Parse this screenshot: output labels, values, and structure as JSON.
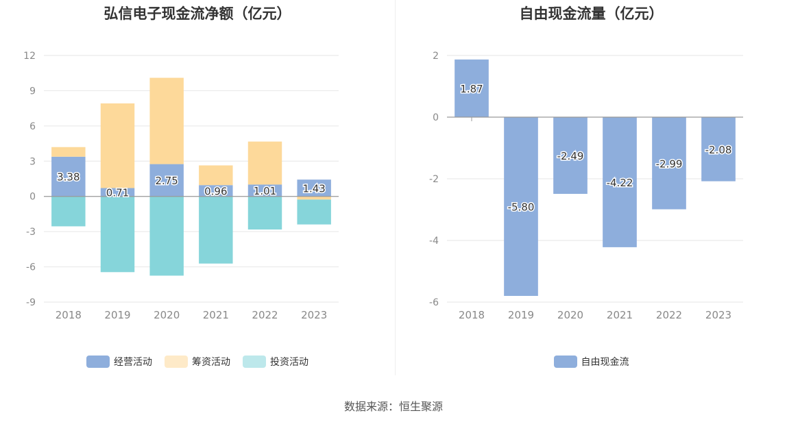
{
  "source": "数据来源：恒生聚源",
  "chart_data": [
    {
      "type": "bar",
      "stacked": true,
      "title": "弘信电子现金流净额（亿元）",
      "categories": [
        "2018",
        "2019",
        "2020",
        "2021",
        "2022",
        "2023"
      ],
      "ylim": [
        -9,
        12
      ],
      "yticks": [
        12,
        9,
        6,
        3,
        0,
        -3,
        -6,
        -9
      ],
      "grid": true,
      "legend_position": "bottom-center",
      "series": [
        {
          "name": "经营活动",
          "color": "#8eaedc",
          "values": [
            3.38,
            0.71,
            2.75,
            0.96,
            1.01,
            1.43
          ],
          "labels": [
            "3.38",
            "0.71",
            "2.75",
            "0.96",
            "1.01",
            "1.43"
          ]
        },
        {
          "name": "筹资活动",
          "color": "#fdd99a",
          "values": [
            0.82,
            7.21,
            7.35,
            1.68,
            3.66,
            -0.27
          ]
        },
        {
          "name": "投资活动",
          "color": "#86d5da",
          "values": [
            -2.55,
            -6.45,
            -6.75,
            -5.72,
            -2.82,
            -2.12
          ]
        }
      ]
    },
    {
      "type": "bar",
      "title": "自由现金流量（亿元）",
      "categories": [
        "2018",
        "2019",
        "2020",
        "2021",
        "2022",
        "2023"
      ],
      "ylim": [
        -6,
        2
      ],
      "yticks": [
        2,
        0,
        -2,
        -4,
        -6
      ],
      "grid": true,
      "legend_position": "bottom-center",
      "series": [
        {
          "name": "自由现金流",
          "color": "#8eaedc",
          "values": [
            1.87,
            -5.8,
            -2.49,
            -4.22,
            -2.99,
            -2.08
          ],
          "labels": [
            "1.87",
            "-5.80",
            "-2.49",
            "-4.22",
            "-2.99",
            "-2.08"
          ]
        }
      ]
    }
  ]
}
